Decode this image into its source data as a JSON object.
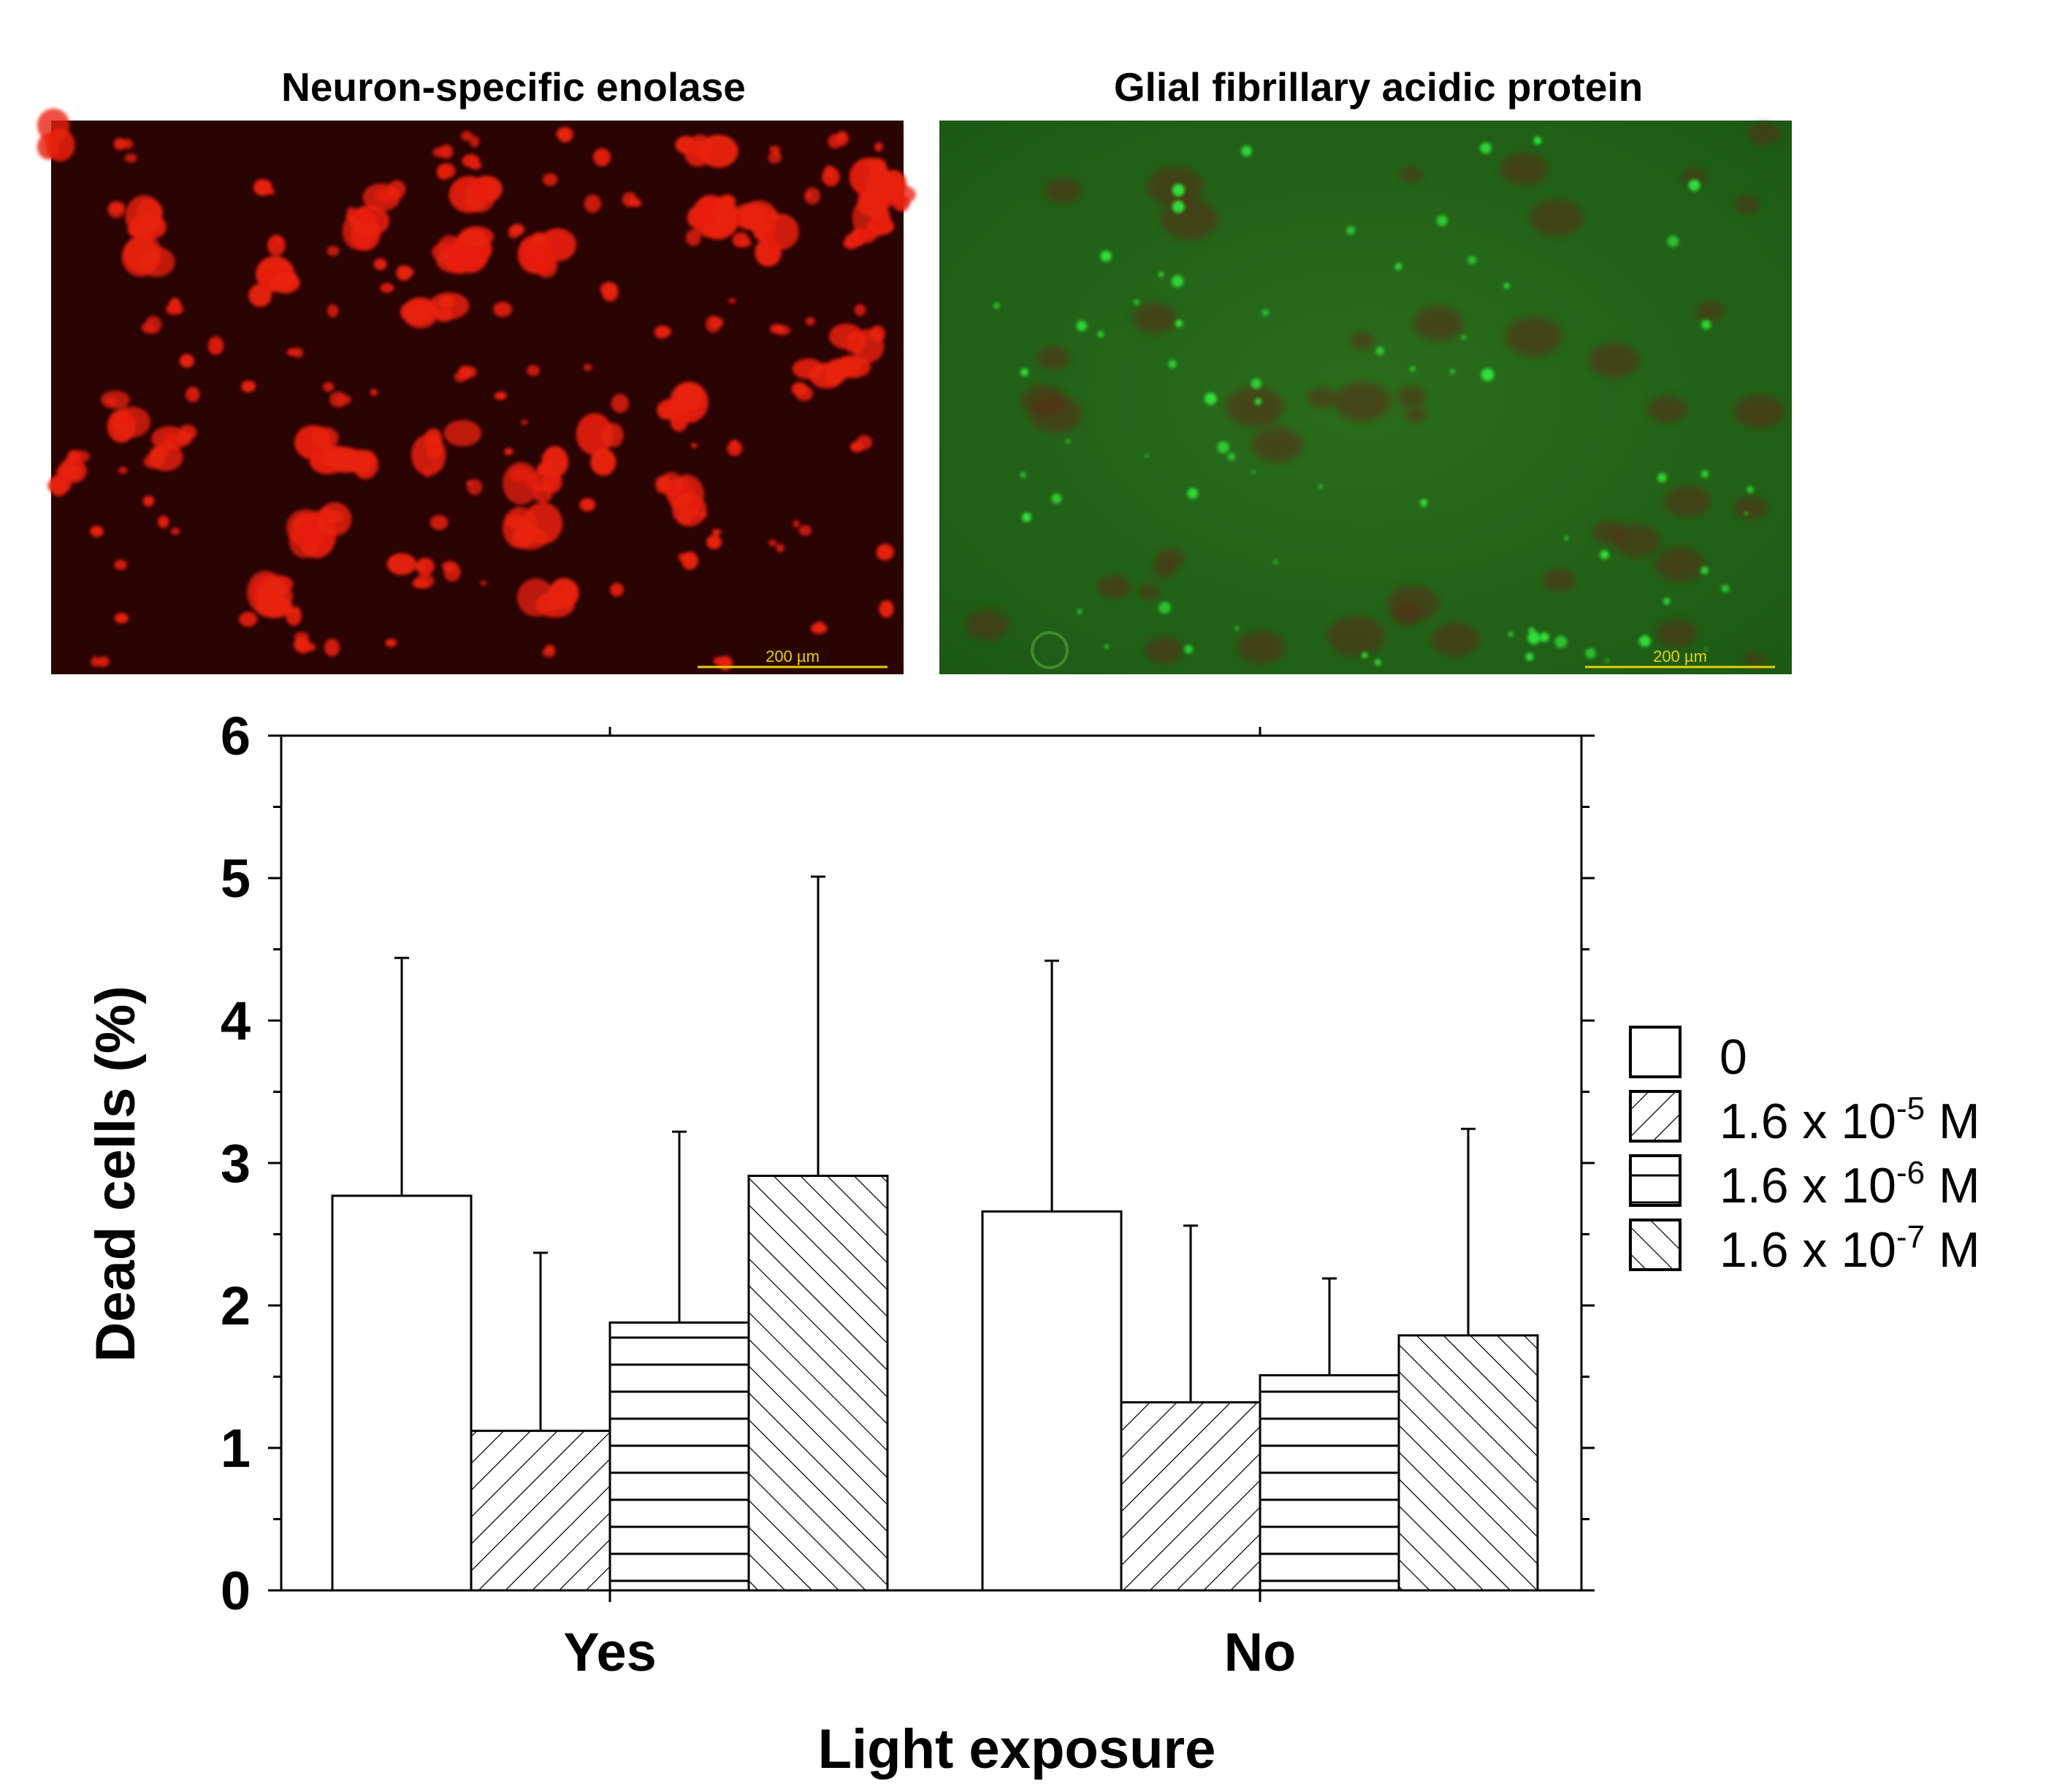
{
  "panels": [
    {
      "title": "Neuron-specific enolase",
      "scale_label": "200 µm",
      "stain_color": "#e8200c",
      "background_color": "#2a0303"
    },
    {
      "title": "Glial fibrillary acidic protein",
      "scale_label": "200 µm",
      "stain_color": "#33e63a",
      "background_color": "#1c5a14"
    }
  ],
  "chart_data": {
    "type": "bar",
    "xlabel": "Light exposure",
    "ylabel": "Dead cells (%)",
    "categories": [
      "Yes",
      "No"
    ],
    "ylim": [
      0,
      6
    ],
    "yticks": [
      "0",
      "1",
      "2",
      "3",
      "4",
      "5",
      "6"
    ],
    "series": [
      {
        "name": "0",
        "pattern": "none",
        "values": [
          2.77,
          2.66
        ],
        "error": [
          1.67,
          1.76
        ]
      },
      {
        "name": "1.6 x 10-5 M",
        "pattern": "diagonal-down",
        "values": [
          1.12,
          1.32
        ],
        "error": [
          1.25,
          1.24
        ]
      },
      {
        "name": "1.6 x 10-6 M",
        "pattern": "horizontal",
        "values": [
          1.88,
          1.51
        ],
        "error": [
          1.34,
          0.68
        ]
      },
      {
        "name": "1.6 x 10-7 M",
        "pattern": "diagonal-up",
        "values": [
          2.91,
          1.79
        ],
        "error": [
          2.1,
          1.45
        ]
      }
    ],
    "legend": [
      {
        "base": "0",
        "exp": ""
      },
      {
        "base": "1.6 x 10",
        "exp": "-5",
        "unit": " M"
      },
      {
        "base": "1.6 x 10",
        "exp": "-6",
        "unit": " M"
      },
      {
        "base": "1.6 x 10",
        "exp": "-7",
        "unit": " M"
      }
    ],
    "legend_position": "right"
  }
}
